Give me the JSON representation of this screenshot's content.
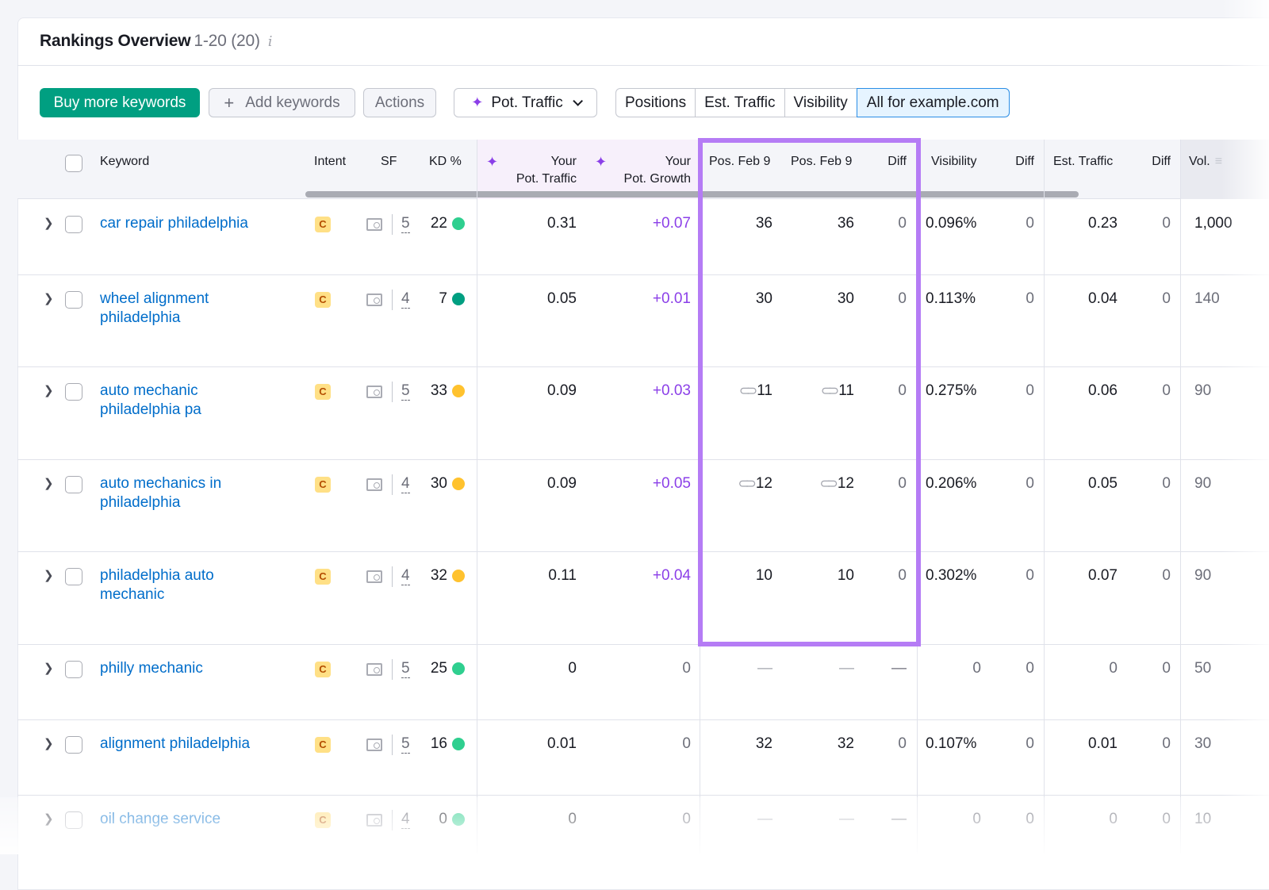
{
  "title": {
    "main": "Rankings Overview",
    "count": "1-20 (20)",
    "info": "i"
  },
  "toolbar": {
    "buy": "Buy more keywords",
    "add": "Add keywords",
    "add_icon": "+",
    "actions": "Actions",
    "pot_traffic": "Pot. Traffic",
    "pot_chevron": "⌄",
    "sparkle": "✦"
  },
  "segments": [
    "Positions",
    "Est. Traffic",
    "Visibility",
    "All for example.com"
  ],
  "selected_segment": "All for example.com",
  "colors": {
    "accent_green": "#009f81",
    "highlight_box": "#b57cf5",
    "pot_growth": "#8b3fe8",
    "link": "#006dca",
    "kd_green": "#2fcf8f",
    "kd_dark_green": "#009f81",
    "kd_yellow": "#ffc22e"
  },
  "headers": {
    "keyword": "Keyword",
    "intent": "Intent",
    "sf": "SF",
    "kd": "KD %",
    "pot_traffic_1": "Your",
    "pot_traffic_2": "Pot. Traffic",
    "pot_growth_1": "Your",
    "pot_growth_2": "Pot. Growth",
    "pos1": "Pos. Feb 9",
    "pos2": "Pos. Feb 9",
    "diff": "Diff",
    "visibility": "Visibility",
    "vis_diff": "Diff",
    "est_traffic": "Est. Traffic",
    "est_diff": "Diff",
    "vol": "Vol."
  },
  "rows": [
    {
      "keyword": "car repair philadelphia",
      "intent": "C",
      "sf": "5",
      "kd": "22",
      "kd_color": "#2fcf8f",
      "pot_traffic": "0.31",
      "pot_growth": "+0.07",
      "pos1": "36",
      "pos2": "36",
      "link": false,
      "diff": "0",
      "visibility": "0.096%",
      "vis_diff": "0",
      "est_traffic": "0.23",
      "est_diff": "0",
      "vol": "1,000"
    },
    {
      "keyword": "wheel alignment philadelphia",
      "intent": "C",
      "sf": "4",
      "kd": "7",
      "kd_color": "#009f81",
      "pot_traffic": "0.05",
      "pot_growth": "+0.01",
      "pos1": "30",
      "pos2": "30",
      "link": false,
      "diff": "0",
      "visibility": "0.113%",
      "vis_diff": "0",
      "est_traffic": "0.04",
      "est_diff": "0",
      "vol": "140"
    },
    {
      "keyword": "auto mechanic philadelphia pa",
      "intent": "C",
      "sf": "5",
      "kd": "33",
      "kd_color": "#ffc22e",
      "pot_traffic": "0.09",
      "pot_growth": "+0.03",
      "pos1": "11",
      "pos2": "11",
      "link": true,
      "diff": "0",
      "visibility": "0.275%",
      "vis_diff": "0",
      "est_traffic": "0.06",
      "est_diff": "0",
      "vol": "90"
    },
    {
      "keyword": "auto mechanics in philadelphia",
      "intent": "C",
      "sf": "4",
      "kd": "30",
      "kd_color": "#ffc22e",
      "pot_traffic": "0.09",
      "pot_growth": "+0.05",
      "pos1": "12",
      "pos2": "12",
      "link": true,
      "diff": "0",
      "visibility": "0.206%",
      "vis_diff": "0",
      "est_traffic": "0.05",
      "est_diff": "0",
      "vol": "90"
    },
    {
      "keyword": "philadelphia auto mechanic",
      "intent": "C",
      "sf": "4",
      "kd": "32",
      "kd_color": "#ffc22e",
      "pot_traffic": "0.11",
      "pot_growth": "+0.04",
      "pos1": "10",
      "pos2": "10",
      "link": false,
      "diff": "0",
      "visibility": "0.302%",
      "vis_diff": "0",
      "est_traffic": "0.07",
      "est_diff": "0",
      "vol": "90"
    },
    {
      "keyword": "philly mechanic",
      "intent": "C",
      "sf": "5",
      "kd": "25",
      "kd_color": "#2fcf8f",
      "pot_traffic": "0",
      "pot_growth": "0",
      "pos1": "—",
      "pos2": "—",
      "link": false,
      "diff": "—",
      "visibility": "0",
      "vis_diff": "0",
      "est_traffic": "0",
      "est_diff": "0",
      "vol": "50"
    },
    {
      "keyword": "alignment philadelphia",
      "intent": "C",
      "sf": "5",
      "kd": "16",
      "kd_color": "#2fcf8f",
      "pot_traffic": "0.01",
      "pot_growth": "0",
      "pos1": "32",
      "pos2": "32",
      "link": false,
      "diff": "0",
      "visibility": "0.107%",
      "vis_diff": "0",
      "est_traffic": "0.01",
      "est_diff": "0",
      "vol": "30"
    },
    {
      "keyword": "oil change service",
      "intent": "C",
      "sf": "4",
      "kd": "0",
      "kd_color": "#2fcf8f",
      "pot_traffic": "0",
      "pot_growth": "0",
      "pos1": "—",
      "pos2": "—",
      "link": false,
      "diff": "—",
      "visibility": "0",
      "vis_diff": "0",
      "est_traffic": "0",
      "est_diff": "0",
      "vol": "10"
    }
  ]
}
